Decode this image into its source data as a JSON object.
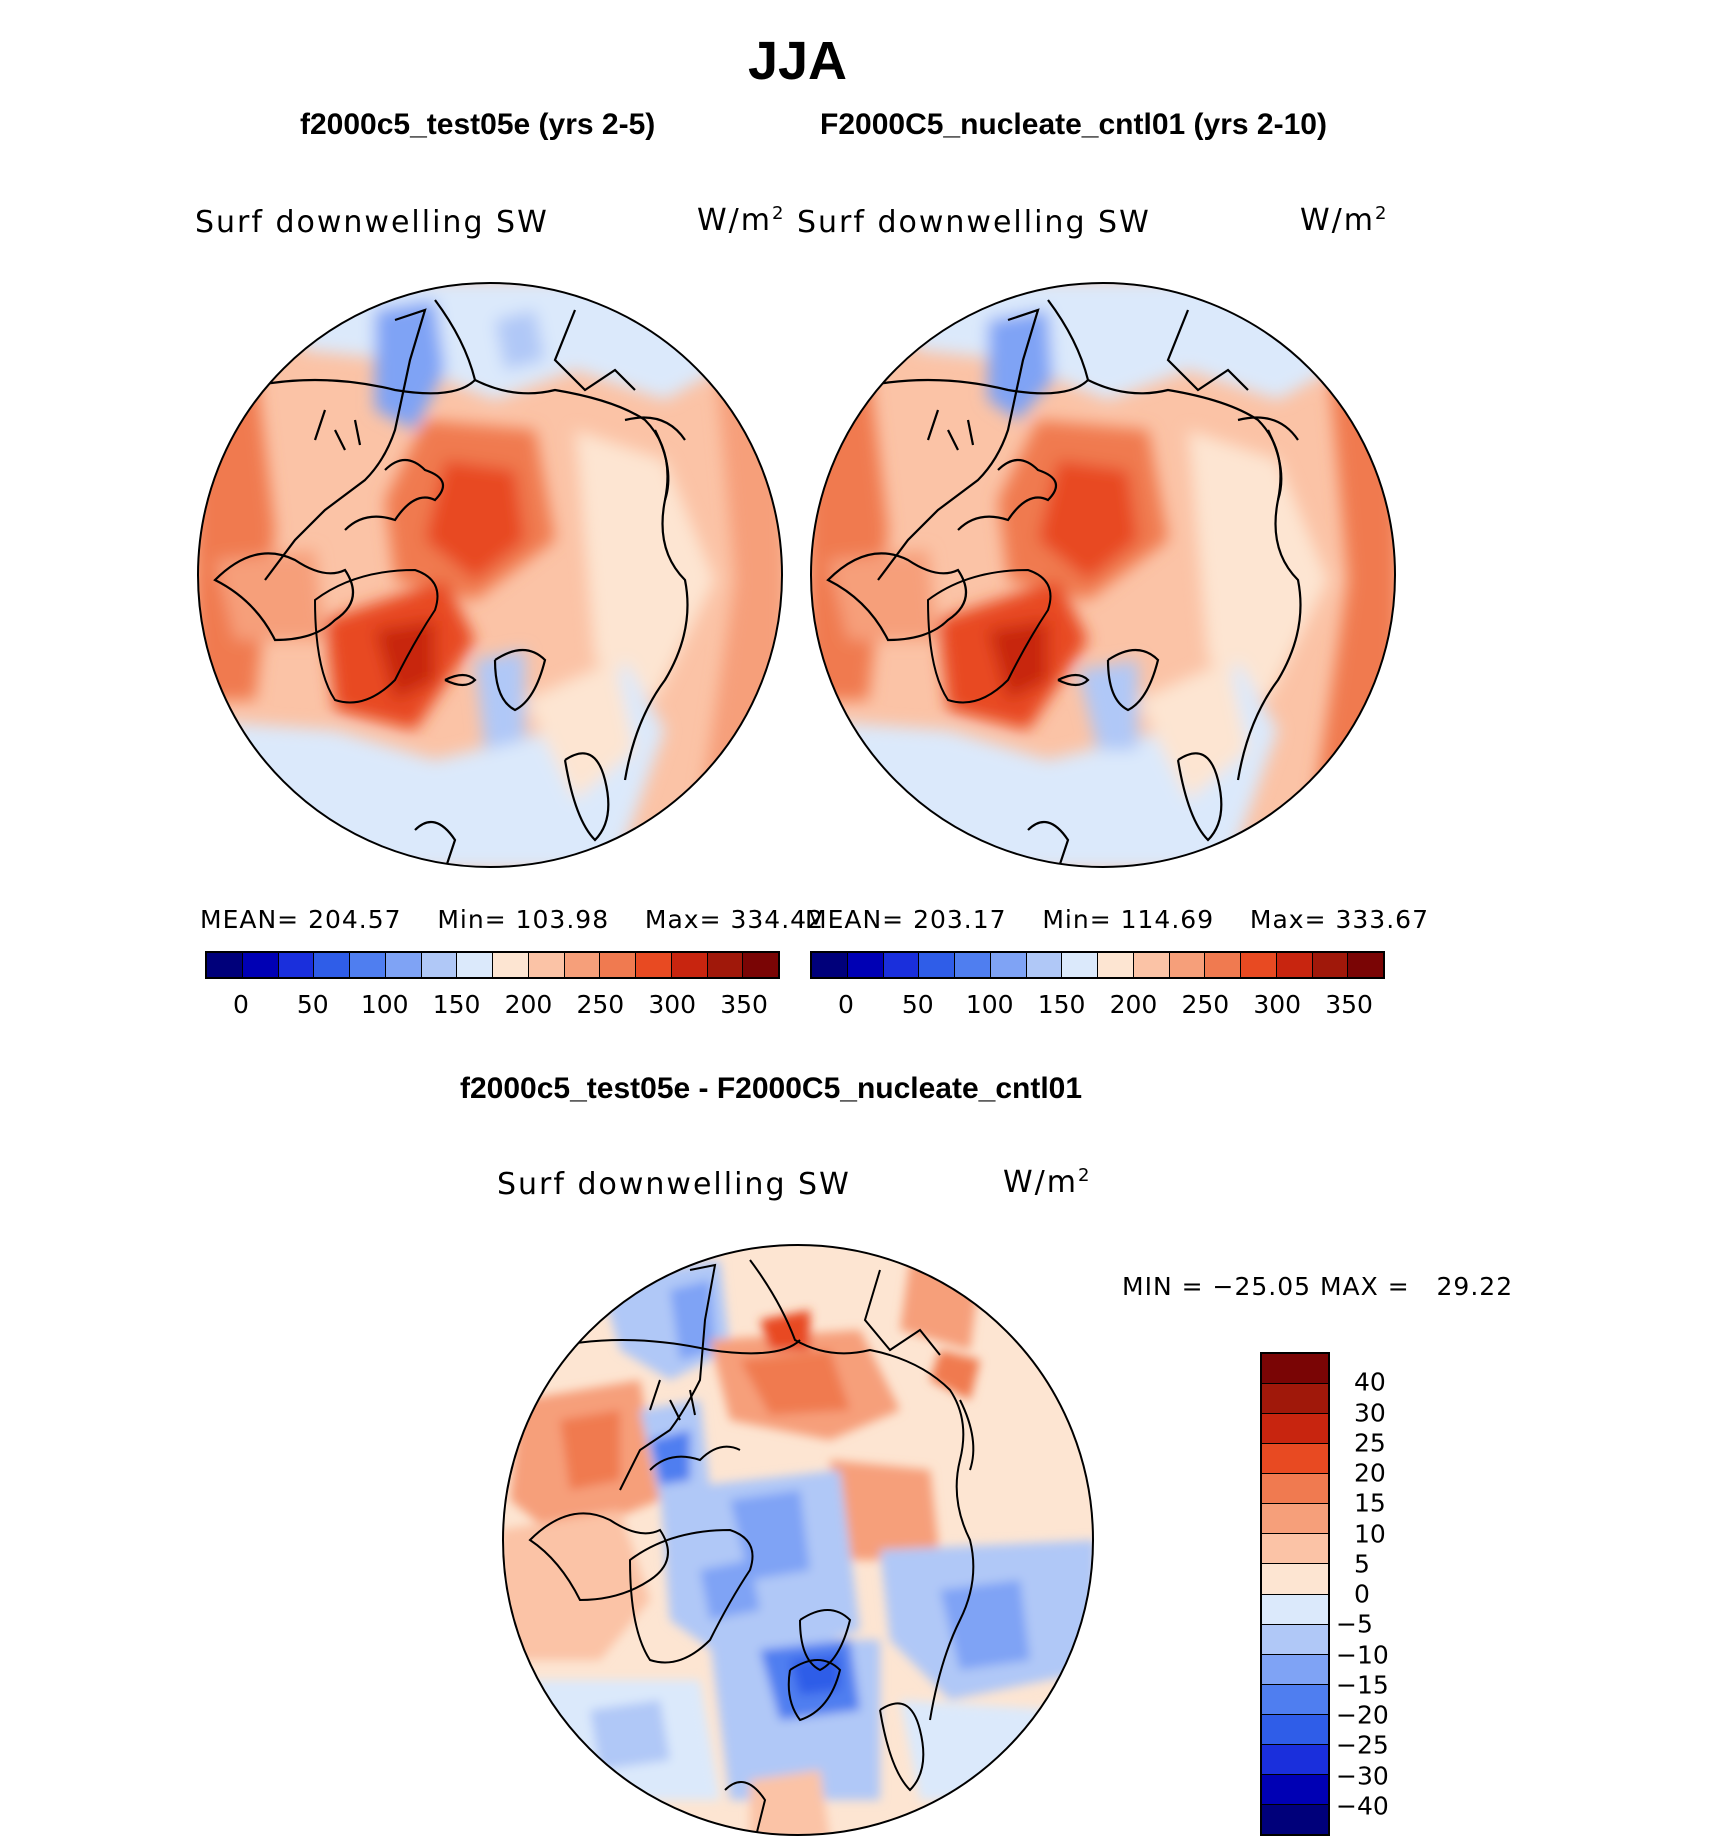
{
  "title": "JJA",
  "panels": [
    {
      "case_title": "f2000c5_test05e (yrs 2-5)",
      "variable": "Surf downwelling SW",
      "units": "W/m",
      "units_sup": "2",
      "stats": {
        "mean_label": "MEAN=",
        "mean": "204.57",
        "min_label": "Min=",
        "min": "103.98",
        "max_label": "Max=",
        "max": "334.42"
      }
    },
    {
      "case_title": "F2000C5_nucleate_cntl01 (yrs 2-10)",
      "variable": "Surf downwelling SW",
      "units": "W/m",
      "units_sup": "2",
      "stats": {
        "mean_label": "MEAN=",
        "mean": "203.17",
        "min_label": "Min=",
        "min": "114.69",
        "max_label": "Max=",
        "max": "333.67"
      }
    }
  ],
  "diff_panel": {
    "title": "f2000c5_test05e - F2000C5_nucleate_cntl01",
    "variable": "Surf downwelling SW",
    "units": "W/m",
    "units_sup": "2",
    "minmax": {
      "min_label": "MIN =",
      "min": "−25.05",
      "max_label": "MAX =",
      "max": "29.22"
    }
  },
  "colorbars": {
    "absolute": {
      "colors": [
        "#00007a",
        "#0000b4",
        "#1a2fdc",
        "#2f5de8",
        "#4f7ef0",
        "#7fa3f5",
        "#b0c8f7",
        "#dbe9fb",
        "#fde5d2",
        "#fbc3a6",
        "#f69f7a",
        "#f07a50",
        "#e84a22",
        "#c8250f",
        "#a0180a",
        "#7a0505"
      ],
      "labels": [
        "0",
        "50",
        "100",
        "150",
        "200",
        "250",
        "300",
        "350"
      ]
    },
    "difference": {
      "colors": [
        "#7a0505",
        "#a0180a",
        "#c8250f",
        "#e84a22",
        "#f07a50",
        "#f69f7a",
        "#fbc3a6",
        "#fde5d2",
        "#dbe9fb",
        "#b0c8f7",
        "#7fa3f5",
        "#4f7ef0",
        "#2f5de8",
        "#1a2fdc",
        "#0000b4",
        "#00007a"
      ],
      "labels": [
        "40",
        "30",
        "25",
        "20",
        "15",
        "10",
        "5",
        "0",
        "−5",
        "−10",
        "−15",
        "−20",
        "−25",
        "−30",
        "−40"
      ]
    }
  }
}
